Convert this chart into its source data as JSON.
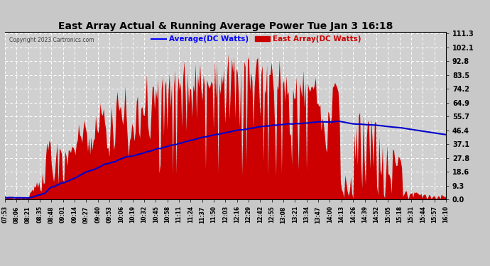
{
  "title": "East Array Actual & Running Average Power Tue Jan 3 16:18",
  "copyright": "Copyright 2023 Cartronics.com",
  "legend_avg": "Average(DC Watts)",
  "legend_east": "East Array(DC Watts)",
  "yticks": [
    0.0,
    9.3,
    18.6,
    27.8,
    37.1,
    46.4,
    55.7,
    64.9,
    74.2,
    83.5,
    92.8,
    102.1,
    111.3
  ],
  "ymax": 111.3,
  "ymin": 0.0,
  "bg_color": "#c8c8c8",
  "plot_bg": "#d0d0d0",
  "bar_color": "#cc0000",
  "avg_color": "#0000cc",
  "grid_color": "#ffffff",
  "title_color": "#000000",
  "copyright_color": "#444444",
  "avg_legend_color": "#0000ff",
  "east_legend_color": "#cc0000",
  "xtick_labels": [
    "07:53",
    "08:06",
    "08:21",
    "08:35",
    "08:48",
    "09:01",
    "09:14",
    "09:27",
    "09:40",
    "09:53",
    "10:06",
    "10:19",
    "10:32",
    "10:45",
    "10:58",
    "11:11",
    "11:24",
    "11:37",
    "11:50",
    "12:03",
    "12:16",
    "12:29",
    "12:42",
    "12:55",
    "13:08",
    "13:21",
    "13:34",
    "13:47",
    "14:00",
    "14:13",
    "14:26",
    "14:39",
    "14:52",
    "15:05",
    "15:18",
    "15:31",
    "15:44",
    "15:57",
    "16:10"
  ]
}
